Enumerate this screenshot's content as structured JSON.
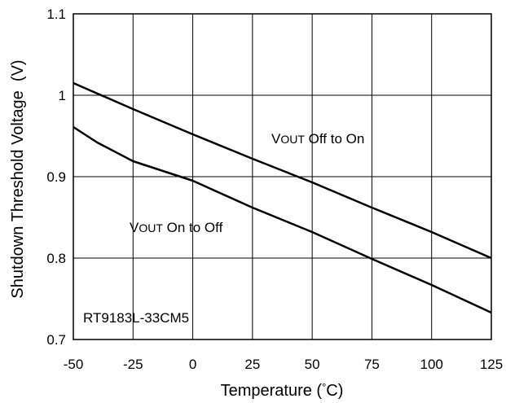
{
  "chart_data": {
    "type": "line",
    "title": "",
    "xlabel_text": "Temperature (",
    "xlabel_unit_symbol": "°",
    "xlabel_unit_rest": "C)",
    "ylabel": "Shutdown Threshold Voltage  (V)",
    "xlim": [
      -50,
      125
    ],
    "ylim": [
      0.7,
      1.1
    ],
    "xticks": [
      -50,
      -25,
      0,
      25,
      50,
      75,
      100,
      125
    ],
    "yticks": [
      0.7,
      0.8,
      0.9,
      1.0,
      1.1
    ],
    "xtick_labels": [
      "-50",
      "-25",
      "0",
      "25",
      "50",
      "75",
      "100",
      "125"
    ],
    "ytick_labels": [
      "0.7",
      "0.8",
      "0.9",
      "1",
      "1.1"
    ],
    "grid": true,
    "series": [
      {
        "name": "VOUT Off to On",
        "x": [
          -50,
          -25,
          0,
          25,
          50,
          75,
          100,
          125
        ],
        "y": [
          1.015,
          0.983,
          0.952,
          0.922,
          0.893,
          0.862,
          0.832,
          0.8
        ]
      },
      {
        "name": "VOUT On to Off",
        "x": [
          -50,
          -40,
          -25,
          0,
          25,
          50,
          75,
          100,
          125
        ],
        "y": [
          0.961,
          0.942,
          0.919,
          0.895,
          0.862,
          0.832,
          0.799,
          0.767,
          0.733
        ]
      }
    ],
    "annotations": [
      {
        "id": "off-to-on",
        "main": "V",
        "sub": "OUT",
        "rest": " Off to On"
      },
      {
        "id": "on-to-off",
        "main": "V",
        "sub": "OUT",
        "rest": " On to Off"
      },
      {
        "id": "part-number",
        "text": "RT9183L-33CM5"
      }
    ],
    "colors": {
      "line": "#000000",
      "grid": "#000000",
      "background": "#ffffff"
    }
  }
}
